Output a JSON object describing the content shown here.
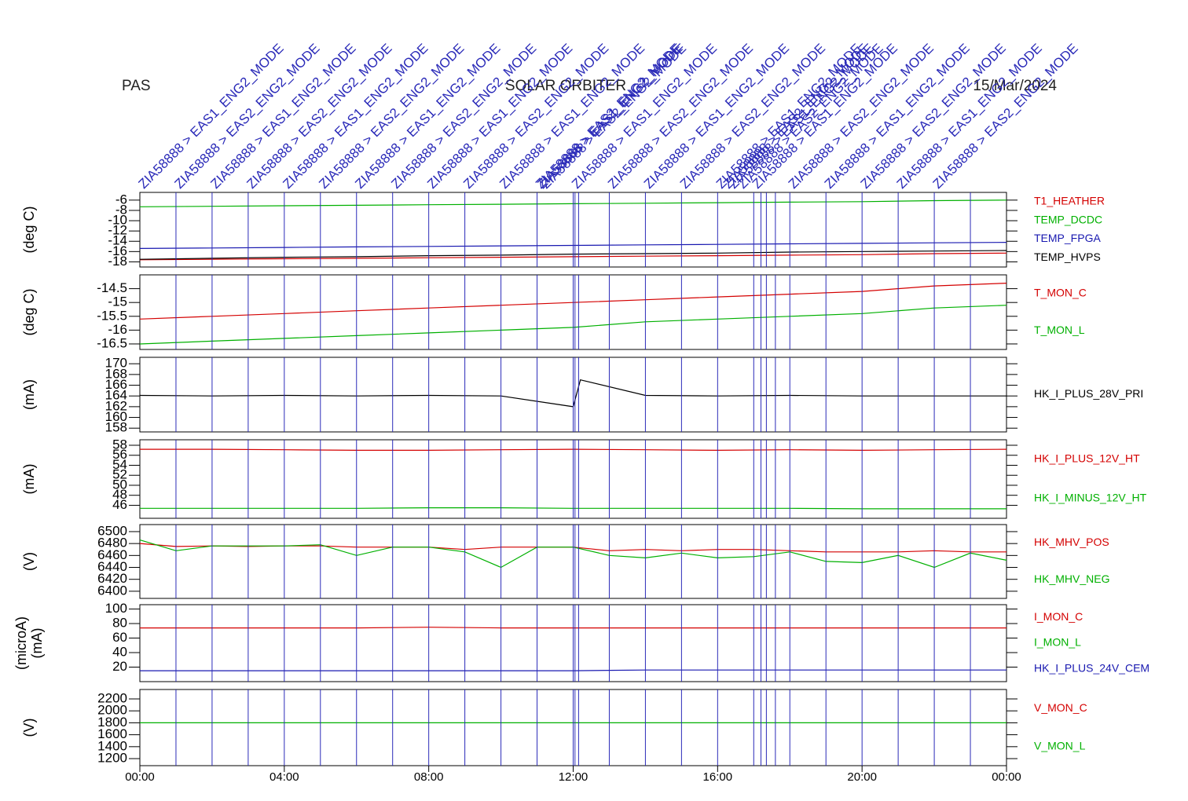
{
  "header": {
    "left": "PAS",
    "center": "SOLAR ORBITER",
    "right": "15/Mar/2024"
  },
  "events": [
    {
      "x": 1,
      "label": "ZIA58888 > EAS1_ENG2_MODE"
    },
    {
      "x": 2,
      "label": "ZIA58888 > EAS2_ENG2_MODE"
    },
    {
      "x": 3,
      "label": "ZIA58888 > EAS1_ENG2_MODE"
    },
    {
      "x": 4,
      "label": "ZIA58888 > EAS2_ENG2_MODE"
    },
    {
      "x": 5,
      "label": "ZIA58888 > EAS1_ENG2_MODE"
    },
    {
      "x": 6,
      "label": "ZIA58888 > EAS2_ENG2_MODE"
    },
    {
      "x": 7,
      "label": "ZIA58888 > EAS1_ENG2_MODE"
    },
    {
      "x": 8,
      "label": "ZIA58888 > EAS2_ENG2_MODE"
    },
    {
      "x": 9,
      "label": "ZIA58888 > EAS1_ENG2_MODE"
    },
    {
      "x": 10,
      "label": "ZIA58888 > EAS2_ENG2_MODE"
    },
    {
      "x": 11,
      "label": "ZIA58888 > EAS1_ENG2_MODE"
    },
    {
      "x": 12,
      "label": "ZIA58888 > EAS2_ENG2_MODE"
    },
    {
      "x": 12.05,
      "label": "ZIA58888 > EAS1_ENG2_MODE"
    },
    {
      "x": 12.15,
      "label": "ZIA58888 > EAS2_ENG2_MODE"
    },
    {
      "x": 13,
      "label": "ZIA58888 > EAS1_ENG2_MODE"
    },
    {
      "x": 14,
      "label": "ZIA58888 > EAS2_ENG2_MODE"
    },
    {
      "x": 15,
      "label": "ZIA58888 > EAS1_ENG2_MODE"
    },
    {
      "x": 16,
      "label": "ZIA58888 > EAS2_ENG2_MODE"
    },
    {
      "x": 17,
      "label": "ZIA58888 > EAS1_ENG2_MODE"
    },
    {
      "x": 17.2,
      "label": "ZIA58888 > EAS2_ENG2_MODE"
    },
    {
      "x": 17.35,
      "label": "ZIA58888 > EAS1_ENG2_MODE"
    },
    {
      "x": 17.6,
      "label": "ZIA58888 > EAS2_ENG2_MODE"
    },
    {
      "x": 18,
      "label": "ZIA58888 > EAS1_ENG2_MODE"
    },
    {
      "x": 19,
      "label": "ZIA58888 > EAS2_ENG2_MODE"
    },
    {
      "x": 20,
      "label": "ZIA58888 > EAS1_ENG2_MODE"
    },
    {
      "x": 21,
      "label": "ZIA58888 > EAS2_ENG2_MODE"
    },
    {
      "x": 22,
      "label": "ZIA58888 > EAS1_ENG2_MODE"
    },
    {
      "x": 23,
      "label": "ZIA58888 > EAS2_ENG2_MODE"
    }
  ],
  "chart_data": [
    {
      "type": "line",
      "ylabels": [
        "(deg C)"
      ],
      "xlim": [
        0,
        24
      ],
      "ylim": [
        -19,
        -4.5
      ],
      "yticks": [
        -6,
        -8,
        -10,
        -12,
        -14,
        -16,
        -18
      ],
      "x": [
        0,
        2,
        4,
        6,
        8,
        10,
        12,
        14,
        16,
        18,
        20,
        22,
        24
      ],
      "series": [
        {
          "name": "T1_HEATHER",
          "color": "#d40000",
          "values": [
            -17.6,
            -17.5,
            -17.4,
            -17.3,
            -17.2,
            -17.1,
            -17.0,
            -16.9,
            -16.8,
            -16.7,
            -16.6,
            -16.4,
            -16.3
          ]
        },
        {
          "name": "TEMP_DCDC",
          "color": "#00b000",
          "values": [
            -7.3,
            -7.2,
            -7.1,
            -7.0,
            -6.9,
            -6.8,
            -6.7,
            -6.6,
            -6.5,
            -6.4,
            -6.3,
            -6.1,
            -6.0
          ]
        },
        {
          "name": "TEMP_FPGA",
          "color": "#1818b0",
          "values": [
            -15.4,
            -15.3,
            -15.2,
            -15.1,
            -15.0,
            -14.9,
            -14.8,
            -14.7,
            -14.6,
            -14.5,
            -14.4,
            -14.3,
            -14.2
          ]
        },
        {
          "name": "TEMP_HVPS",
          "color": "#000000",
          "values": [
            -17.5,
            -17.3,
            -17.1,
            -17.0,
            -16.8,
            -16.7,
            -16.5,
            -16.4,
            -16.3,
            -16.1,
            -16.0,
            -15.9,
            -15.8
          ]
        }
      ]
    },
    {
      "type": "line",
      "ylabels": [
        "(deg C)"
      ],
      "xlim": [
        0,
        24
      ],
      "ylim": [
        -16.7,
        -14
      ],
      "yticks": [
        -14.5,
        -15.0,
        -15.5,
        -16.0,
        -16.5
      ],
      "x": [
        0,
        2,
        4,
        6,
        8,
        10,
        12,
        14,
        16,
        18,
        20,
        22,
        24
      ],
      "series": [
        {
          "name": "T_MON_C",
          "color": "#d40000",
          "values": [
            -15.6,
            -15.5,
            -15.4,
            -15.3,
            -15.2,
            -15.1,
            -15.0,
            -14.9,
            -14.8,
            -14.7,
            -14.6,
            -14.4,
            -14.3
          ]
        },
        {
          "name": "T_MON_L",
          "color": "#00b000",
          "values": [
            -16.5,
            -16.4,
            -16.3,
            -16.2,
            -16.1,
            -16.0,
            -15.9,
            -15.7,
            -15.6,
            -15.5,
            -15.4,
            -15.2,
            -15.1
          ]
        }
      ]
    },
    {
      "type": "line",
      "ylabels": [
        "(mA)"
      ],
      "xlim": [
        0,
        24
      ],
      "ylim": [
        157.3,
        171.2
      ],
      "yticks": [
        170,
        168,
        166,
        164,
        162,
        160,
        158
      ],
      "x": [
        0,
        2,
        4,
        6,
        8,
        10,
        12,
        12.2,
        14,
        16,
        18,
        20,
        22,
        24
      ],
      "series": [
        {
          "name": "HK_I_PLUS_28V_PRI",
          "color": "#000000",
          "values": [
            164.1,
            164.0,
            164.1,
            164.0,
            164.1,
            164.0,
            162.0,
            167.0,
            164.1,
            164.0,
            164.1,
            164.0,
            164.0,
            164.0
          ]
        }
      ]
    },
    {
      "type": "line",
      "ylabels": [
        "(mA)"
      ],
      "xlim": [
        0,
        24
      ],
      "ylim": [
        43.4,
        59.1
      ],
      "yticks": [
        58,
        56,
        54,
        52,
        50,
        48,
        46
      ],
      "x": [
        0,
        2,
        4,
        6,
        8,
        10,
        12,
        14,
        16,
        18,
        20,
        22,
        24
      ],
      "series": [
        {
          "name": "HK_I_PLUS_12V_HT",
          "color": "#d40000",
          "values": [
            57.2,
            57.2,
            57.1,
            57.0,
            57.0,
            57.1,
            57.2,
            57.1,
            57.0,
            57.1,
            57.0,
            57.1,
            57.2
          ]
        },
        {
          "name": "HK_I_MINUS_12V_HT",
          "color": "#00b000",
          "values": [
            45.4,
            45.4,
            45.4,
            45.4,
            45.5,
            45.5,
            45.4,
            45.4,
            45.4,
            45.4,
            45.3,
            45.3,
            45.3
          ]
        }
      ]
    },
    {
      "type": "line",
      "ylabels": [
        "(V)"
      ],
      "xlim": [
        0,
        24
      ],
      "ylim": [
        6388,
        6511.8
      ],
      "yticks": [
        6500,
        6480,
        6460,
        6440,
        6420,
        6400
      ],
      "x": [
        0,
        1,
        2,
        3,
        4,
        5,
        6,
        7,
        8,
        9,
        10,
        11,
        12,
        13,
        14,
        15,
        16,
        17,
        18,
        19,
        20,
        21,
        22,
        23,
        24
      ],
      "series": [
        {
          "name": "HK_MHV_POS",
          "color": "#d40000",
          "values": [
            6480,
            6475,
            6476,
            6475,
            6476,
            6476,
            6474,
            6474,
            6474,
            6470,
            6474,
            6474,
            6474,
            6468,
            6470,
            6468,
            6470,
            6470,
            6468,
            6466,
            6466,
            6466,
            6468,
            6466,
            6466
          ]
        },
        {
          "name": "HK_MHV_NEG",
          "color": "#00b000",
          "values": [
            6486,
            6468,
            6476,
            6476,
            6476,
            6478,
            6460,
            6474,
            6474,
            6466,
            6440,
            6474,
            6474,
            6460,
            6456,
            6464,
            6456,
            6458,
            6466,
            6450,
            6448,
            6460,
            6440,
            6464,
            6452
          ]
        }
      ]
    },
    {
      "type": "line",
      "ylabels": [
        "(microA)",
        "(mA)"
      ],
      "xlim": [
        0,
        24
      ],
      "ylim": [
        0,
        106
      ],
      "yticks": [
        100,
        80,
        60,
        40,
        20
      ],
      "x": [
        0,
        2,
        4,
        6,
        8,
        10,
        12,
        14,
        16,
        18,
        20,
        22,
        24
      ],
      "series": [
        {
          "name": "I_MON_C",
          "color": "#d40000",
          "values": [
            74,
            74,
            74,
            74,
            75,
            74,
            74,
            74,
            74,
            74,
            74,
            74,
            74
          ]
        },
        {
          "name": "I_MON_L",
          "color": "#00b000",
          "values": [
            null,
            null,
            null,
            null,
            null,
            null,
            null,
            null,
            null,
            null,
            null,
            null,
            null
          ]
        },
        {
          "name": "HK_I_PLUS_24V_CEM",
          "color": "#1818b0",
          "values": [
            15,
            15,
            15,
            15,
            15,
            15,
            15,
            16,
            16,
            16,
            16,
            16,
            16
          ]
        }
      ]
    },
    {
      "type": "line",
      "ylabels": [
        "(V)"
      ],
      "xlim": [
        0,
        24
      ],
      "ylim": [
        1082,
        2358
      ],
      "yticks": [
        2200,
        2000,
        1800,
        1600,
        1400,
        1200
      ],
      "x": [
        0,
        2,
        4,
        6,
        8,
        10,
        12,
        14,
        16,
        18,
        20,
        22,
        24
      ],
      "xticks": [
        {
          "value": 0,
          "label": "00:00"
        },
        {
          "value": 4,
          "label": "04:00"
        },
        {
          "value": 8,
          "label": "08:00"
        },
        {
          "value": 12,
          "label": "12:00"
        },
        {
          "value": 16,
          "label": "16:00"
        },
        {
          "value": 20,
          "label": "20:00"
        },
        {
          "value": 24,
          "label": "00:00"
        }
      ],
      "series": [
        {
          "name": "V_MON_C",
          "color": "#d40000",
          "values": [
            null,
            null,
            null,
            null,
            null,
            null,
            null,
            null,
            null,
            null,
            null,
            null,
            null
          ]
        },
        {
          "name": "V_MON_L",
          "color": "#00b000",
          "values": [
            1800,
            1800,
            1800,
            1800,
            1800,
            1800,
            1800,
            1800,
            1800,
            1800,
            1800,
            1800,
            1800
          ]
        }
      ]
    }
  ]
}
